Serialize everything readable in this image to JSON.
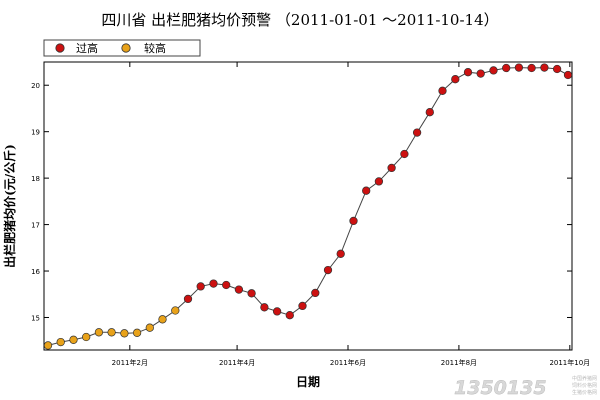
{
  "chart_data": {
    "type": "line",
    "title": "四川省 出栏肥猪均价预警 （2011-01-01 ～2011-10-14）",
    "xlabel": "日期",
    "ylabel": "出栏肥猪均价(元/公斤)",
    "xlim": [
      "2011-01-01",
      "2011-10-14"
    ],
    "ylim": [
      14.3,
      20.5
    ],
    "y_ticks": [
      15,
      16,
      17,
      18,
      19,
      20
    ],
    "y_tick_labels": [
      "15",
      "16",
      "17",
      "18",
      "19",
      "20"
    ],
    "x_ticks": [
      "2011-02-15",
      "2011-04-15",
      "2011-06-15",
      "2011-08-15",
      "2011-10-15"
    ],
    "x_tick_labels": [
      "2011年2月",
      "2011年4月",
      "2011年6月",
      "2011年8月",
      "2011年10月"
    ],
    "grid": false,
    "legend_position": "top-left",
    "legend": [
      {
        "key": "over",
        "label": "过高",
        "color": "#cc1111"
      },
      {
        "key": "high",
        "label": "较高",
        "color": "#e8a21a"
      }
    ],
    "line_color": "#444444",
    "series": [
      {
        "x": [
          "2011-01-01",
          "2011-01-08",
          "2011-01-15",
          "2011-01-22",
          "2011-01-29",
          "2011-02-05",
          "2011-02-12",
          "2011-02-19",
          "2011-02-26",
          "2011-03-05",
          "2011-03-12",
          "2011-03-19",
          "2011-03-26",
          "2011-04-02",
          "2011-04-09",
          "2011-04-16",
          "2011-04-23",
          "2011-04-30",
          "2011-05-07",
          "2011-05-14",
          "2011-05-21",
          "2011-05-28",
          "2011-06-04",
          "2011-06-11",
          "2011-06-18",
          "2011-06-25",
          "2011-07-02",
          "2011-07-09",
          "2011-07-16",
          "2011-07-23",
          "2011-07-30",
          "2011-08-06",
          "2011-08-13",
          "2011-08-20",
          "2011-08-27",
          "2011-09-03",
          "2011-09-10",
          "2011-09-17",
          "2011-09-24",
          "2011-10-01",
          "2011-10-08",
          "2011-10-14"
        ],
        "values": [
          14.4,
          14.47,
          14.52,
          14.58,
          14.68,
          14.68,
          14.66,
          14.67,
          14.78,
          14.96,
          15.15,
          15.4,
          15.67,
          15.73,
          15.7,
          15.6,
          15.52,
          15.22,
          15.13,
          15.05,
          15.25,
          15.53,
          16.02,
          16.37,
          17.08,
          17.73,
          17.93,
          18.22,
          18.52,
          18.98,
          19.42,
          19.88,
          20.13,
          20.28,
          20.25,
          20.32,
          20.37,
          20.38,
          20.37,
          20.38,
          20.35,
          20.22
        ],
        "levels": [
          "high",
          "high",
          "high",
          "high",
          "high",
          "high",
          "high",
          "high",
          "high",
          "high",
          "high",
          "over",
          "over",
          "over",
          "over",
          "over",
          "over",
          "over",
          "over",
          "over",
          "over",
          "over",
          "over",
          "over",
          "over",
          "over",
          "over",
          "over",
          "over",
          "over",
          "over",
          "over",
          "over",
          "over",
          "over",
          "over",
          "over",
          "over",
          "over",
          "over",
          "over",
          "over"
        ]
      }
    ]
  },
  "watermark": {
    "text": "1350135",
    "small_lines": [
      "中国养猪网",
      "饲料价格网",
      "生猪价格网"
    ]
  }
}
